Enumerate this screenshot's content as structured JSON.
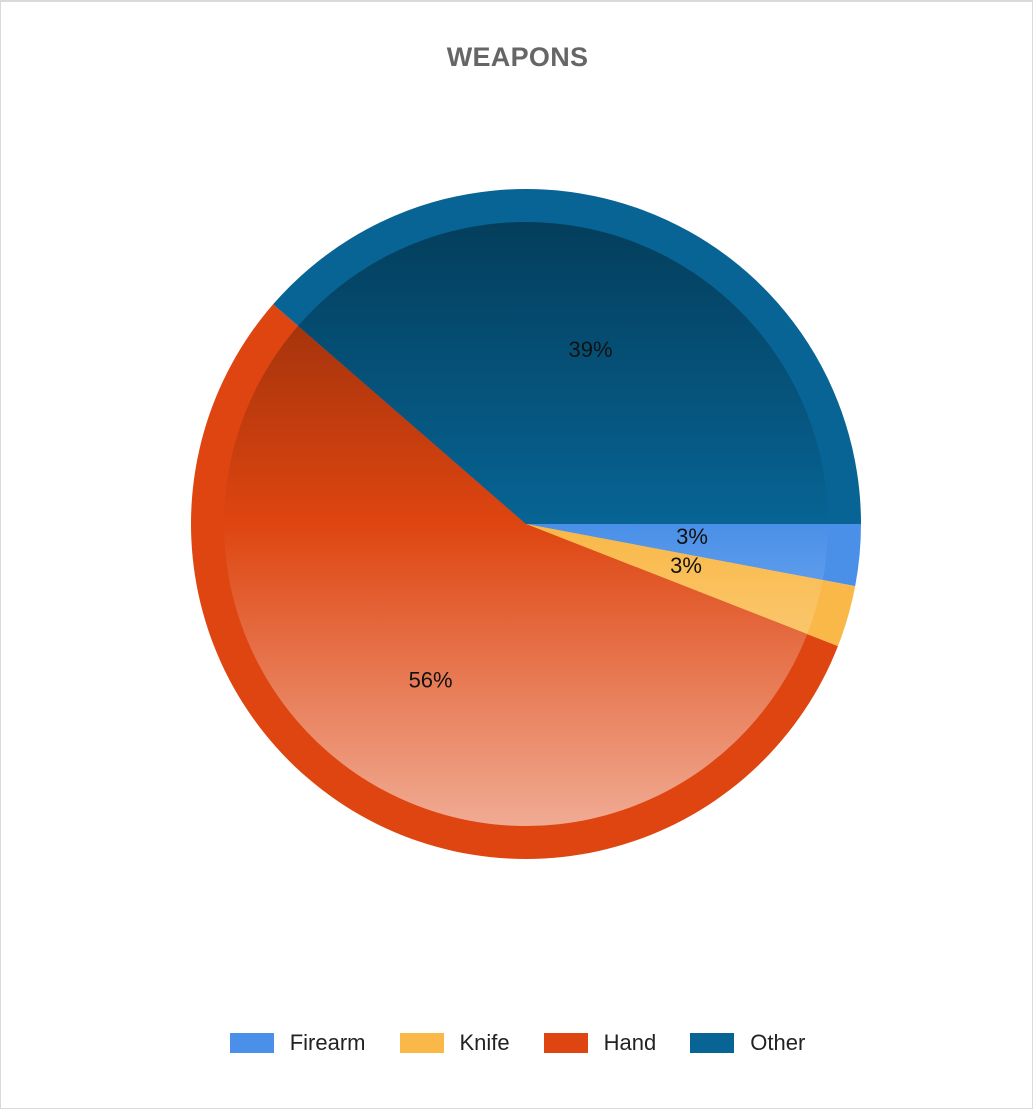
{
  "chart_data": {
    "type": "pie",
    "title": "WEAPONS",
    "categories": [
      "Firearm",
      "Knife",
      "Hand",
      "Other"
    ],
    "values": [
      3,
      3,
      56,
      39
    ],
    "value_labels": [
      "3%",
      "3%",
      "56%",
      "39%"
    ],
    "colors": [
      "#4a90e8",
      "#f9b847",
      "#de4510",
      "#076494"
    ],
    "legend_position": "bottom"
  }
}
